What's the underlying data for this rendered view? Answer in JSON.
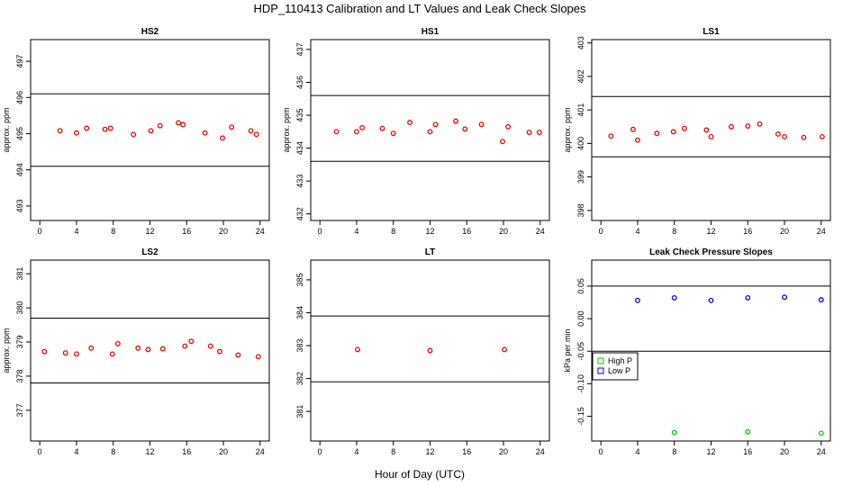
{
  "figure": {
    "title": "HDP_110413  Calibration and LT Values and Leak Check Slopes",
    "xlabel": "Hour of Day (UTC)"
  },
  "colors": {
    "red": "#ee0000",
    "green": "#00cc00",
    "blue": "#0000cc"
  },
  "chart_data": [
    {
      "type": "scatter",
      "title": "HS2",
      "ylabel": "approx. ppm",
      "xlim": [
        -1,
        25
      ],
      "xticks": [
        0,
        4,
        8,
        12,
        16,
        20,
        24
      ],
      "ylim": [
        492.6,
        497.6
      ],
      "yticks": [
        493,
        494,
        495,
        496,
        497
      ],
      "hlines": [
        494.1,
        496.1
      ],
      "series": [
        {
          "color": "red",
          "marker": "circle",
          "x": [
            2.2,
            4.0,
            5.1,
            7.1,
            7.7,
            10.2,
            12.1,
            13.1,
            15.1,
            15.6,
            18.0,
            19.9,
            20.9,
            23.0,
            23.6
          ],
          "y": [
            495.08,
            495.02,
            495.15,
            495.12,
            495.15,
            494.98,
            495.08,
            495.22,
            495.3,
            495.25,
            495.02,
            494.88,
            495.18,
            495.08,
            494.98
          ]
        }
      ]
    },
    {
      "type": "scatter",
      "title": "HS1",
      "ylabel": "approx. ppm",
      "xlim": [
        -1,
        25
      ],
      "xticks": [
        0,
        4,
        8,
        12,
        16,
        20,
        24
      ],
      "ylim": [
        431.8,
        437.3
      ],
      "yticks": [
        432,
        433,
        434,
        435,
        436,
        437
      ],
      "hlines": [
        433.6,
        435.6
      ],
      "series": [
        {
          "color": "red",
          "marker": "circle",
          "x": [
            1.8,
            4.0,
            4.6,
            6.8,
            8.0,
            9.8,
            12.0,
            12.6,
            14.8,
            15.8,
            17.6,
            19.9,
            20.5,
            22.8,
            23.9
          ],
          "y": [
            434.5,
            434.5,
            434.62,
            434.6,
            434.45,
            434.78,
            434.5,
            434.72,
            434.82,
            434.58,
            434.72,
            434.2,
            434.65,
            434.48,
            434.48
          ]
        }
      ]
    },
    {
      "type": "scatter",
      "title": "LS1",
      "ylabel": "approx. ppm",
      "xlim": [
        -1,
        25
      ],
      "xticks": [
        0,
        4,
        8,
        12,
        16,
        20,
        24
      ],
      "ylim": [
        397.7,
        403.1
      ],
      "yticks": [
        398,
        399,
        400,
        401,
        402,
        403
      ],
      "hlines": [
        399.6,
        401.4
      ],
      "series": [
        {
          "color": "red",
          "marker": "circle",
          "x": [
            1.1,
            3.5,
            4.0,
            6.1,
            7.9,
            9.1,
            11.5,
            12.0,
            14.2,
            16.0,
            17.3,
            19.3,
            20.0,
            22.1,
            24.1
          ],
          "y": [
            400.22,
            400.42,
            400.1,
            400.3,
            400.35,
            400.45,
            400.4,
            400.2,
            400.5,
            400.52,
            400.58,
            400.28,
            400.2,
            400.18,
            400.2
          ]
        }
      ]
    },
    {
      "type": "scatter",
      "title": "LS2",
      "ylabel": "approx. ppm",
      "xlim": [
        -1,
        25
      ],
      "xticks": [
        0,
        4,
        8,
        12,
        16,
        20,
        24
      ],
      "ylim": [
        376.1,
        381.4
      ],
      "yticks": [
        377,
        378,
        379,
        380,
        381
      ],
      "hlines": [
        377.8,
        379.7
      ],
      "series": [
        {
          "color": "red",
          "marker": "circle",
          "x": [
            0.5,
            2.8,
            4.0,
            5.6,
            7.9,
            8.5,
            10.7,
            11.8,
            13.4,
            15.8,
            16.5,
            18.6,
            19.6,
            21.6,
            23.8
          ],
          "y": [
            378.72,
            378.68,
            378.65,
            378.82,
            378.65,
            378.95,
            378.82,
            378.78,
            378.8,
            378.88,
            379.02,
            378.88,
            378.72,
            378.62,
            378.57
          ]
        }
      ]
    },
    {
      "type": "scatter",
      "title": "LT",
      "ylabel": "",
      "xlim": [
        -1,
        25
      ],
      "xticks": [
        0,
        4,
        8,
        12,
        16,
        20,
        24
      ],
      "ylim": [
        380.1,
        385.6
      ],
      "yticks": [
        381,
        382,
        383,
        384,
        385
      ],
      "hlines": [
        381.9,
        383.9
      ],
      "series": [
        {
          "color": "red",
          "marker": "circle",
          "x": [
            4.1,
            12.0,
            20.1
          ],
          "y": [
            382.88,
            382.85,
            382.88
          ]
        }
      ]
    },
    {
      "type": "scatter",
      "title": "Leak Check Pressure Slopes",
      "ylabel": "kPa per min",
      "xlim": [
        -1,
        25
      ],
      "xticks": [
        0,
        4,
        8,
        12,
        16,
        20,
        24
      ],
      "ylim": [
        -0.188,
        0.09
      ],
      "yticks": [
        -0.15,
        -0.1,
        -0.05,
        0.0,
        0.05
      ],
      "ytick_labels": [
        "-0.15",
        "-0.10",
        "-0.05",
        "0.00",
        "0.05"
      ],
      "hlines": [
        -0.05,
        0.05
      ],
      "legend": {
        "position": "middle-left",
        "entries": [
          {
            "label": "High P",
            "color": "green"
          },
          {
            "label": "Low P",
            "color": "blue"
          }
        ]
      },
      "series": [
        {
          "name": "High P",
          "color": "green",
          "marker": "circle",
          "x": [
            8.0,
            16.0,
            24.0
          ],
          "y": [
            -0.175,
            -0.174,
            -0.176
          ]
        },
        {
          "name": "Low P",
          "color": "blue",
          "marker": "circle",
          "x": [
            4.0,
            8.0,
            12.0,
            16.0,
            20.0,
            24.0
          ],
          "y": [
            0.028,
            0.032,
            0.028,
            0.032,
            0.033,
            0.029
          ]
        }
      ]
    }
  ]
}
